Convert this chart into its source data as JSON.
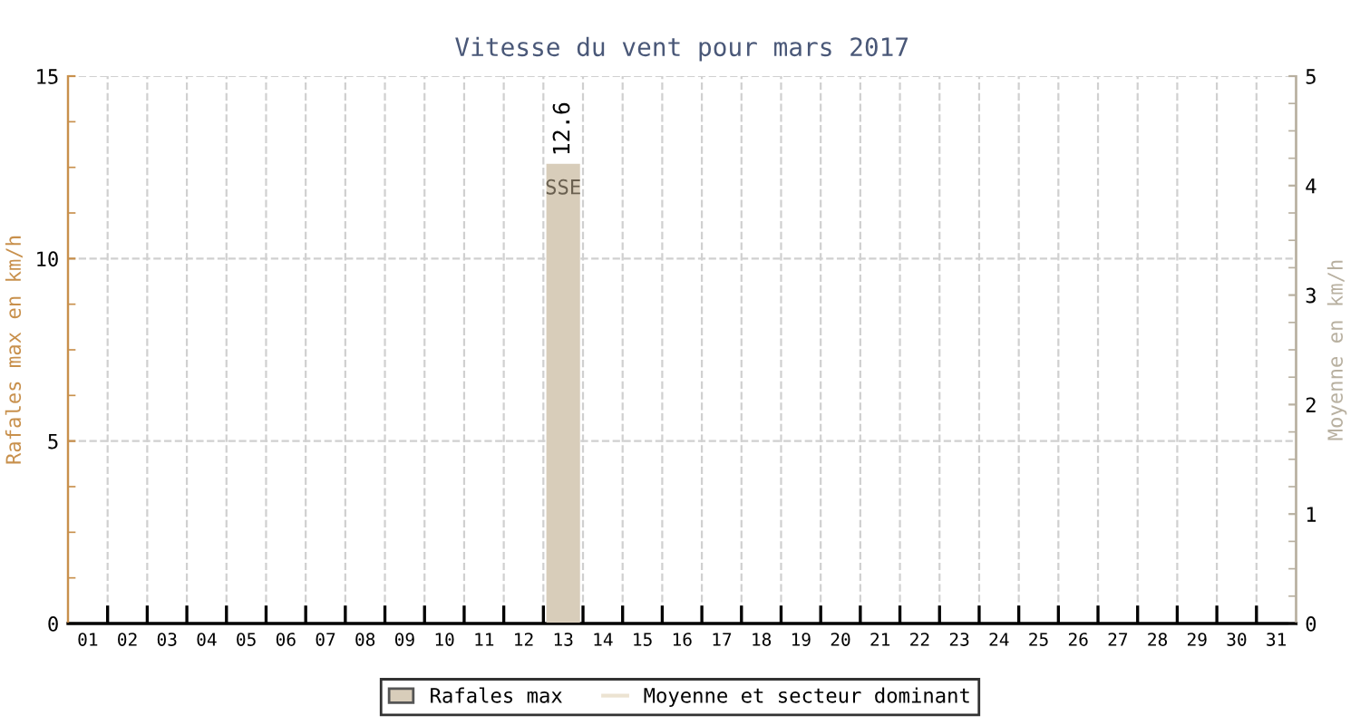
{
  "chart_data": {
    "type": "bar",
    "title": "Vitesse du vent pour mars 2017",
    "ylabel": "Rafales max en km/h",
    "y2label": "Moyenne en km/h",
    "categories": [
      "01",
      "02",
      "03",
      "04",
      "05",
      "06",
      "07",
      "08",
      "09",
      "10",
      "11",
      "12",
      "13",
      "14",
      "15",
      "16",
      "17",
      "18",
      "19",
      "20",
      "21",
      "22",
      "23",
      "24",
      "25",
      "26",
      "27",
      "28",
      "29",
      "30",
      "31"
    ],
    "series": [
      {
        "name": "Rafales max",
        "color": "#d8cdba",
        "values": [
          null,
          null,
          null,
          null,
          null,
          null,
          null,
          null,
          null,
          null,
          null,
          null,
          12.6,
          null,
          null,
          null,
          null,
          null,
          null,
          null,
          null,
          null,
          null,
          null,
          null,
          null,
          null,
          null,
          null,
          null,
          null
        ],
        "value_labels": [
          null,
          null,
          null,
          null,
          null,
          null,
          null,
          null,
          null,
          null,
          null,
          null,
          "12.6",
          null,
          null,
          null,
          null,
          null,
          null,
          null,
          null,
          null,
          null,
          null,
          null,
          null,
          null,
          null,
          null,
          null,
          null
        ]
      },
      {
        "name": "Moyenne et secteur dominant",
        "type": "line",
        "color": "#ece3d2",
        "values": [
          null,
          null,
          null,
          null,
          null,
          null,
          null,
          null,
          null,
          null,
          null,
          null,
          null,
          null,
          null,
          null,
          null,
          null,
          null,
          null,
          null,
          null,
          null,
          null,
          null,
          null,
          null,
          null,
          null,
          null,
          null
        ]
      }
    ],
    "annotations": [
      {
        "text": "SSE",
        "x": "13",
        "y": 12.6
      }
    ],
    "ylim": [
      0,
      15
    ],
    "yticks": [
      0,
      {
        "value": 1.25,
        "label": null
      },
      {
        "value": 2.5,
        "label": null
      },
      {
        "value": 3.75,
        "label": null
      },
      5,
      {
        "value": 6.25,
        "label": null
      },
      {
        "value": 7.5,
        "label": null
      },
      {
        "value": 8.75,
        "label": null
      },
      10,
      {
        "value": 11.25,
        "label": null
      },
      {
        "value": 12.5,
        "label": null
      },
      {
        "value": 13.75,
        "label": null
      },
      15
    ],
    "y2lim": [
      0,
      5
    ],
    "y2ticks": [
      0,
      {
        "value": 0.25,
        "label": null
      },
      {
        "value": 0.5,
        "label": null
      },
      {
        "value": 0.75,
        "label": null
      },
      1,
      {
        "value": 1.25,
        "label": null
      },
      {
        "value": 1.5,
        "label": null
      },
      {
        "value": 1.75,
        "label": null
      },
      2,
      {
        "value": 2.25,
        "label": null
      },
      {
        "value": 2.5,
        "label": null
      },
      {
        "value": 2.75,
        "label": null
      },
      3,
      {
        "value": 3.25,
        "label": null
      },
      {
        "value": 3.5,
        "label": null
      },
      {
        "value": 3.75,
        "label": null
      },
      4,
      {
        "value": 4.25,
        "label": null
      },
      {
        "value": 4.5,
        "label": null
      },
      {
        "value": 4.75,
        "label": null
      },
      5
    ],
    "grid": true,
    "legend": "bottom"
  }
}
